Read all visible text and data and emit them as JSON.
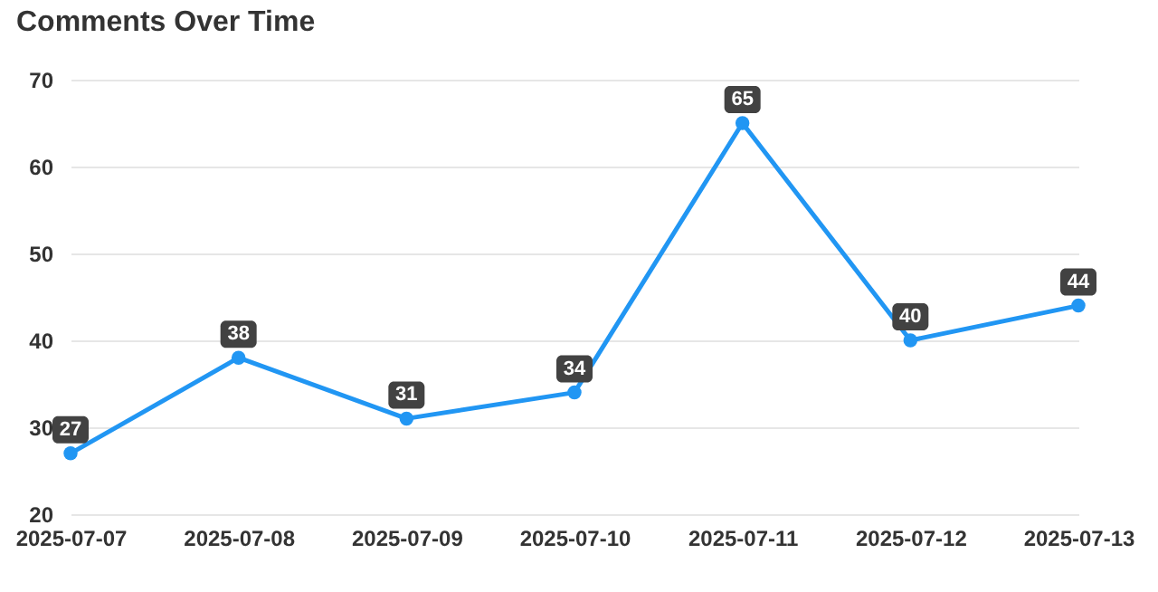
{
  "chart_data": {
    "type": "line",
    "title": "Comments Over Time",
    "categories": [
      "2025-07-07",
      "2025-07-08",
      "2025-07-09",
      "2025-07-10",
      "2025-07-11",
      "2025-07-12",
      "2025-07-13"
    ],
    "series": [
      {
        "color": "#2196f3",
        "values": [
          27,
          38,
          31,
          34,
          65,
          40,
          44
        ]
      }
    ],
    "ylim": [
      20,
      70
    ],
    "yticks": [
      20,
      30,
      40,
      50,
      60,
      70
    ],
    "grid": "y",
    "marker": "circle",
    "line_style": "solid",
    "data_labels": true
  }
}
